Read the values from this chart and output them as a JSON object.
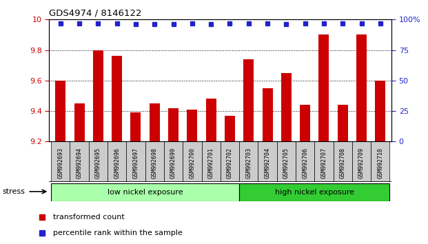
{
  "title": "GDS4974 / 8146122",
  "samples": [
    "GSM992693",
    "GSM992694",
    "GSM992695",
    "GSM992696",
    "GSM992697",
    "GSM992698",
    "GSM992699",
    "GSM992700",
    "GSM992701",
    "GSM992702",
    "GSM992703",
    "GSM992704",
    "GSM992705",
    "GSM992706",
    "GSM992707",
    "GSM992708",
    "GSM992709",
    "GSM992710"
  ],
  "bar_values": [
    9.6,
    9.45,
    9.8,
    9.76,
    9.39,
    9.45,
    9.42,
    9.41,
    9.48,
    9.37,
    9.74,
    9.55,
    9.65,
    9.44,
    9.9,
    9.44,
    9.9,
    9.6
  ],
  "percentile_values": [
    97,
    97,
    97,
    97,
    96,
    96,
    96,
    97,
    96,
    97,
    97,
    97,
    96,
    97,
    97,
    97,
    97,
    97
  ],
  "ylim": [
    9.2,
    10.0
  ],
  "yticks_left": [
    9.2,
    9.4,
    9.6,
    9.8,
    10.0
  ],
  "ytick_labels_left": [
    "9.2",
    "9.4",
    "9.6",
    "9.8",
    "10"
  ],
  "right_yticks_pct": [
    0,
    25,
    50,
    75,
    100
  ],
  "right_ytick_labels": [
    "0",
    "25",
    "50",
    "75",
    "100%"
  ],
  "grid_lines": [
    9.4,
    9.6,
    9.8
  ],
  "bar_color": "#cc0000",
  "percentile_color": "#2222cc",
  "low_nickel_color": "#aaffaa",
  "high_nickel_color": "#33cc33",
  "low_nickel_label": "low nickel exposure",
  "high_nickel_label": "high nickel exposure",
  "low_nickel_count": 10,
  "high_nickel_count": 8,
  "stress_label": "stress",
  "legend_bar_label": "transformed count",
  "legend_pct_label": "percentile rank within the sample",
  "xtick_bg_color": "#cccccc",
  "plot_bg_color": "#ffffff",
  "bar_width": 0.55
}
